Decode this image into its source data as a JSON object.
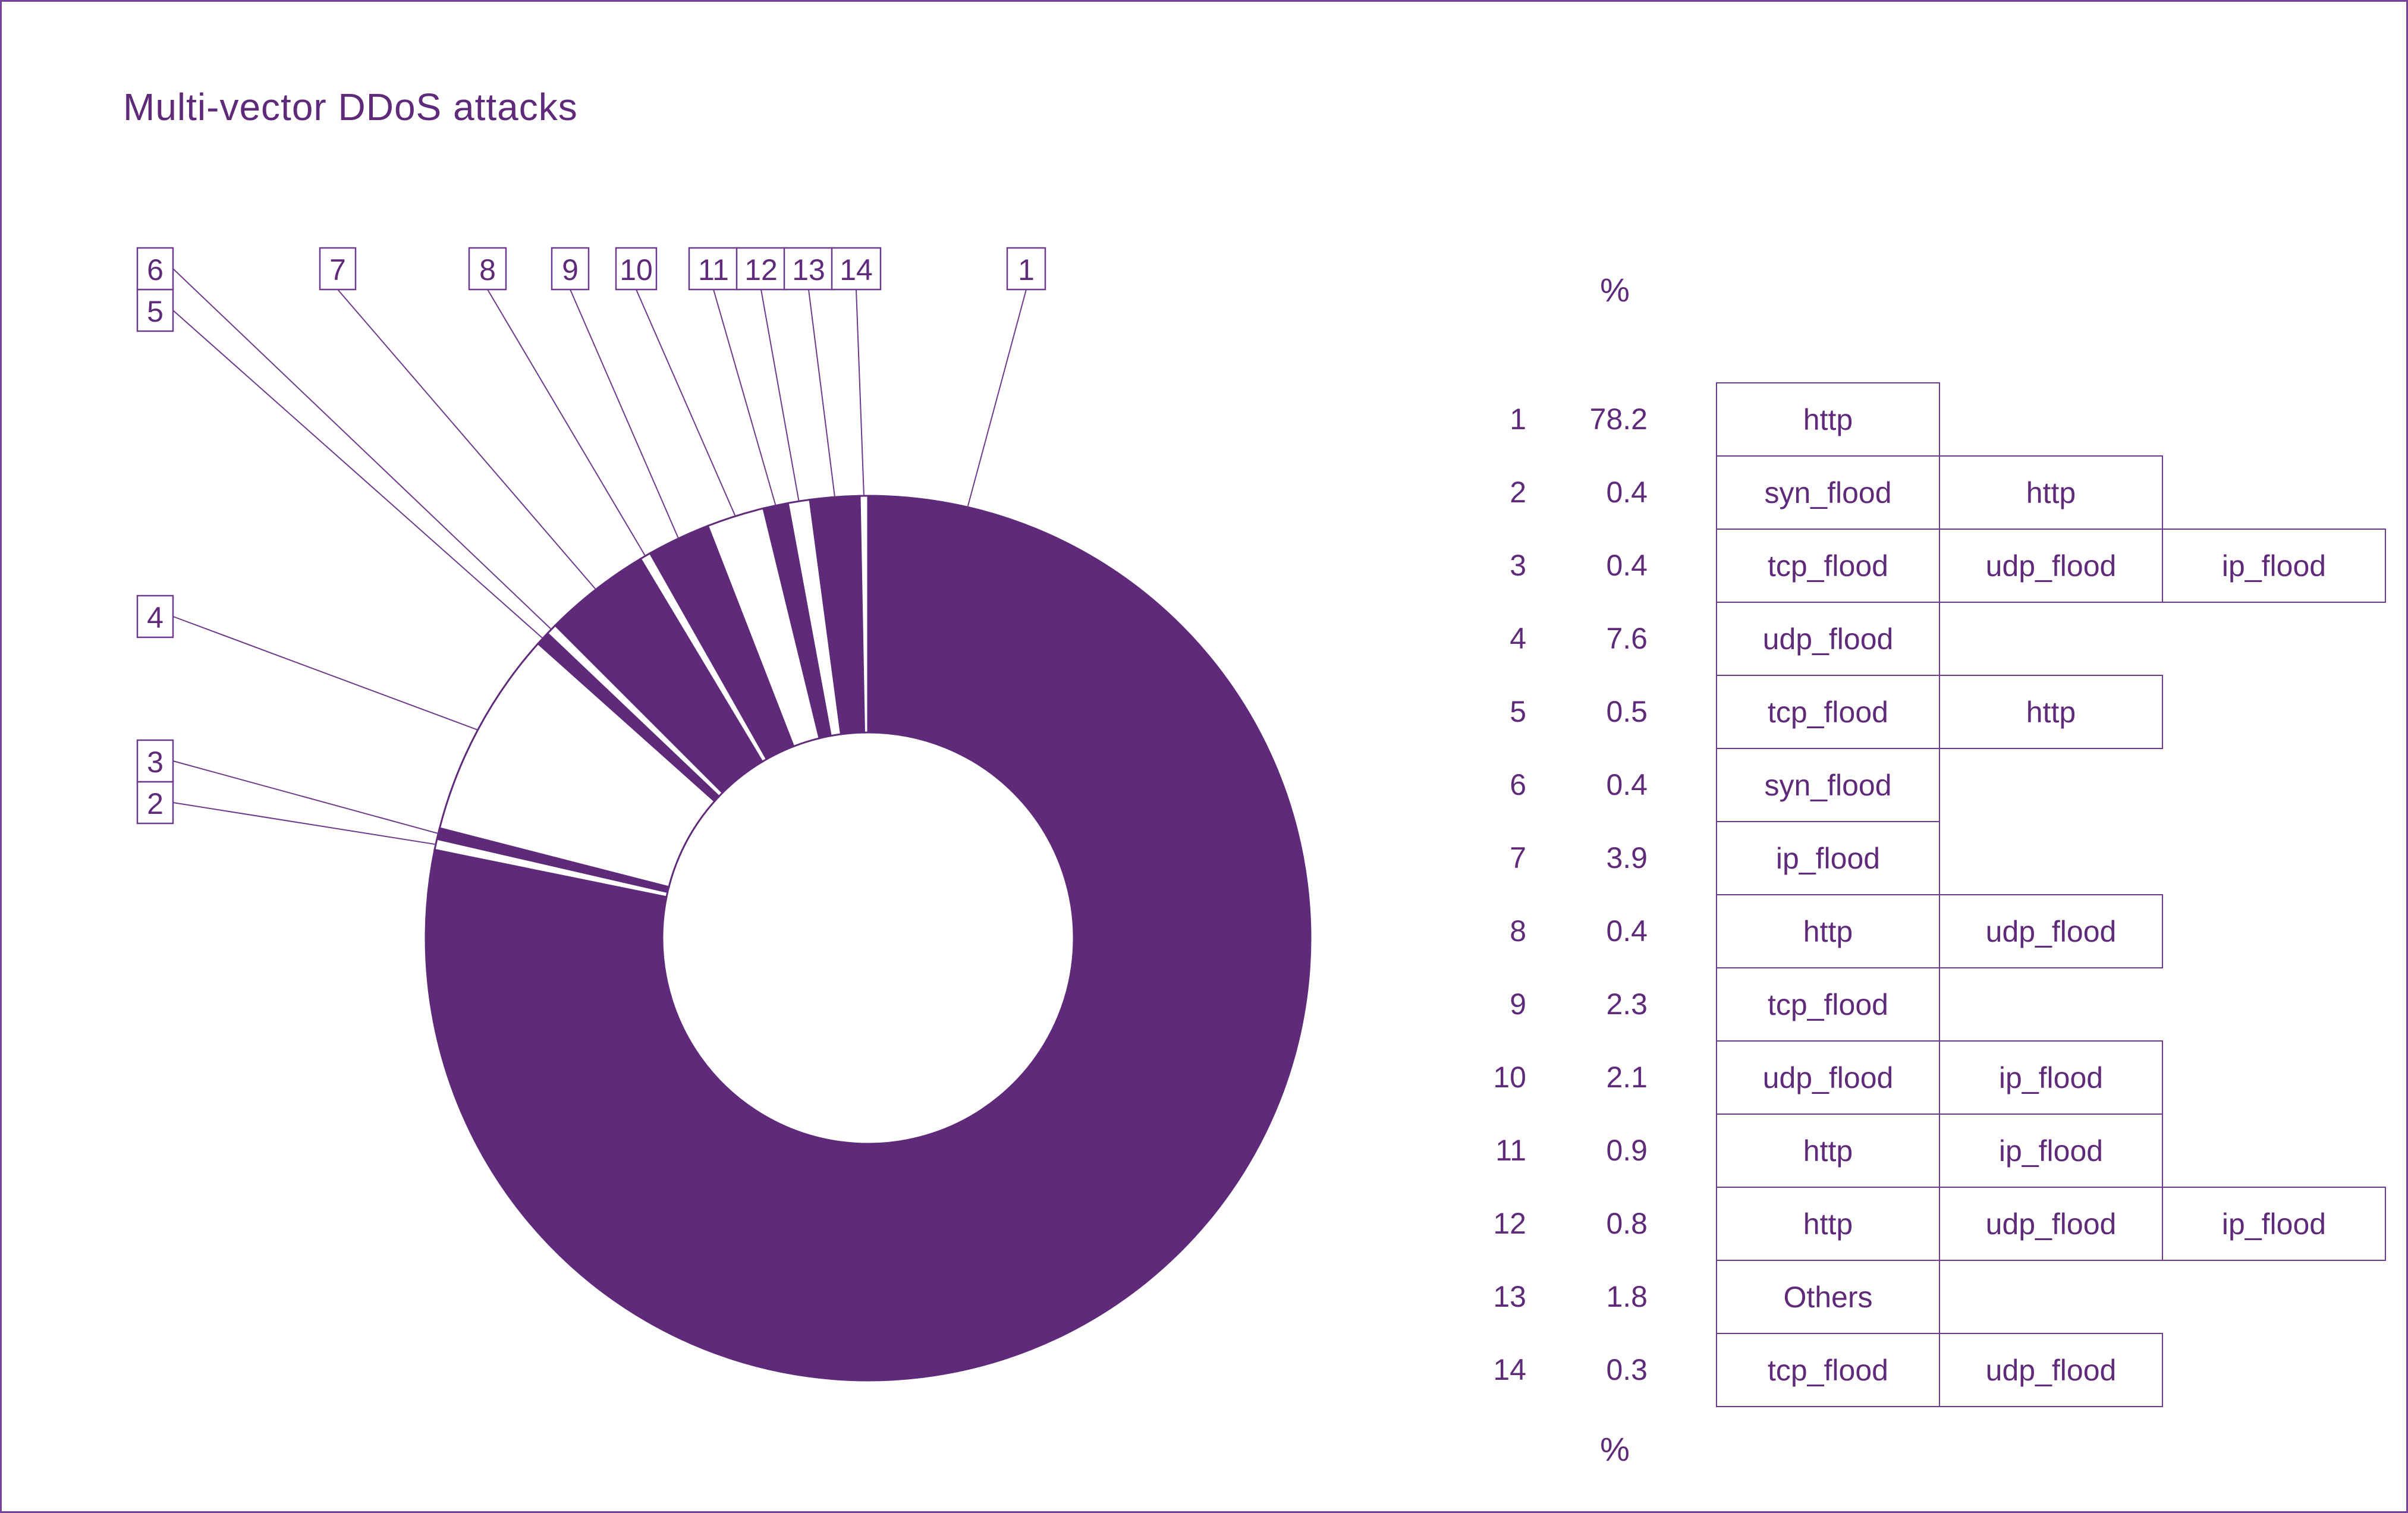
{
  "title": "Multi-vector DDoS attacks",
  "unit_label_top": "%",
  "unit_label_bottom": "%",
  "colors": {
    "purple": "#5F2A7A",
    "white": "#FFFFFF",
    "line": "#6E3A8C",
    "border": "#74439A"
  },
  "chart_data": {
    "type": "pie",
    "subtype": "donut",
    "title": "Multi-vector DDoS attacks",
    "unit": "%",
    "legend_position": "right",
    "slice_color_pattern": [
      "purple",
      "white"
    ],
    "slices": [
      {
        "id": 1,
        "pct": 78.2,
        "vectors": [
          "http"
        ]
      },
      {
        "id": 2,
        "pct": 0.4,
        "vectors": [
          "syn_flood",
          "http"
        ]
      },
      {
        "id": 3,
        "pct": 0.4,
        "vectors": [
          "tcp_flood",
          "udp_flood",
          "ip_flood"
        ]
      },
      {
        "id": 4,
        "pct": 7.6,
        "vectors": [
          "udp_flood"
        ]
      },
      {
        "id": 5,
        "pct": 0.5,
        "vectors": [
          "tcp_flood",
          "http"
        ]
      },
      {
        "id": 6,
        "pct": 0.4,
        "vectors": [
          "syn_flood"
        ]
      },
      {
        "id": 7,
        "pct": 3.9,
        "vectors": [
          "ip_flood"
        ]
      },
      {
        "id": 8,
        "pct": 0.4,
        "vectors": [
          "http",
          "udp_flood"
        ]
      },
      {
        "id": 9,
        "pct": 2.3,
        "vectors": [
          "tcp_flood"
        ]
      },
      {
        "id": 10,
        "pct": 2.1,
        "vectors": [
          "udp_flood",
          "ip_flood"
        ]
      },
      {
        "id": 11,
        "pct": 0.9,
        "vectors": [
          "http",
          "ip_flood"
        ]
      },
      {
        "id": 12,
        "pct": 0.8,
        "vectors": [
          "http",
          "udp_flood",
          "ip_flood"
        ]
      },
      {
        "id": 13,
        "pct": 1.8,
        "vectors": [
          "Others"
        ]
      },
      {
        "id": 14,
        "pct": 0.3,
        "vectors": [
          "tcp_flood",
          "udp_flood"
        ]
      }
    ]
  }
}
